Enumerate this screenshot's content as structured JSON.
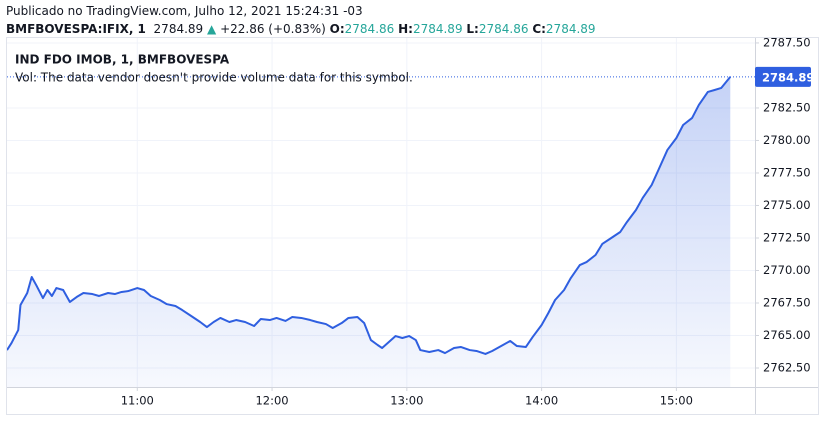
{
  "header": {
    "published": "Publicado no TradingView.com, Julho 12, 2021 15:24:31 -03",
    "symbol": "BMFBOVESPA:IFIX, 1",
    "last": "2784.89",
    "arrow": "▲",
    "change": "+22.86 (+0.83%)",
    "ohlc": [
      {
        "label": "O:",
        "value": "2784.86"
      },
      {
        "label": "H:",
        "value": "2784.89"
      },
      {
        "label": "L:",
        "value": "2784.86"
      },
      {
        "label": "C:",
        "value": "2784.89"
      }
    ]
  },
  "chart_data": {
    "type": "area",
    "title": "IND FDO IMOB, 1, BMFBOVESPA",
    "subtitle": "Vol: The data vendor doesn't provide volume data for this symbol.",
    "x": [
      "10:02",
      "10:04",
      "10:07",
      "10:08",
      "10:11",
      "10:13",
      "10:15",
      "10:18",
      "10:20",
      "10:22",
      "10:24",
      "10:27",
      "10:30",
      "10:33",
      "10:36",
      "10:40",
      "10:43",
      "10:47",
      "10:50",
      "10:53",
      "10:56",
      "11:00",
      "11:03",
      "11:06",
      "11:10",
      "11:13",
      "11:17",
      "11:20",
      "11:24",
      "11:28",
      "11:31",
      "11:34",
      "11:37",
      "11:41",
      "11:44",
      "11:48",
      "11:52",
      "11:55",
      "11:59",
      "12:02",
      "12:06",
      "12:09",
      "12:13",
      "12:17",
      "12:20",
      "12:24",
      "12:27",
      "12:31",
      "12:34",
      "12:38",
      "12:41",
      "12:44",
      "12:47",
      "12:49",
      "12:52",
      "12:55",
      "12:58",
      "13:01",
      "13:04",
      "13:06",
      "13:10",
      "13:14",
      "13:17",
      "13:21",
      "13:24",
      "13:28",
      "13:31",
      "13:35",
      "13:38",
      "13:42",
      "13:46",
      "13:49",
      "13:53",
      "13:56",
      "14:00",
      "14:03",
      "14:06",
      "14:10",
      "14:13",
      "14:17",
      "14:20",
      "14:24",
      "14:27",
      "14:31",
      "14:35",
      "14:38",
      "14:42",
      "14:45",
      "14:49",
      "14:52",
      "14:56",
      "15:00",
      "15:03",
      "15:07",
      "15:10",
      "15:14",
      "15:17",
      "15:20",
      "15:24"
    ],
    "series": [
      {
        "color": "#2f5fe0",
        "values": [
          2763.88,
          2764.42,
          2765.42,
          2767.35,
          2768.27,
          2769.5,
          2768.88,
          2767.88,
          2768.5,
          2768.04,
          2768.65,
          2768.5,
          2767.58,
          2767.96,
          2768.27,
          2768.19,
          2768.04,
          2768.27,
          2768.19,
          2768.35,
          2768.42,
          2768.65,
          2768.5,
          2768.04,
          2767.73,
          2767.42,
          2767.27,
          2766.96,
          2766.5,
          2766.04,
          2765.65,
          2766.04,
          2766.35,
          2766.04,
          2766.19,
          2766.04,
          2765.73,
          2766.27,
          2766.19,
          2766.35,
          2766.12,
          2766.42,
          2766.35,
          2766.19,
          2766.04,
          2765.88,
          2765.58,
          2765.96,
          2766.35,
          2766.42,
          2765.96,
          2764.65,
          2764.27,
          2764.04,
          2764.5,
          2764.96,
          2764.81,
          2764.96,
          2764.65,
          2763.88,
          2763.73,
          2763.88,
          2763.65,
          2764.04,
          2764.12,
          2763.88,
          2763.81,
          2763.58,
          2763.81,
          2764.19,
          2764.58,
          2764.19,
          2764.12,
          2764.88,
          2765.81,
          2766.73,
          2767.73,
          2768.5,
          2769.42,
          2770.42,
          2770.65,
          2771.19,
          2772.04,
          2772.5,
          2772.96,
          2773.73,
          2774.65,
          2775.58,
          2776.58,
          2777.73,
          2779.27,
          2780.19,
          2781.19,
          2781.73,
          2782.73,
          2783.73,
          2783.88,
          2784.04,
          2784.89
        ]
      }
    ],
    "xlim": [
      "10:02",
      "15:35"
    ],
    "xticks": [
      "11:00",
      "12:00",
      "13:00",
      "14:00",
      "15:00"
    ],
    "ylim": [
      2761.04,
      2787.88
    ],
    "yticks": [
      {
        "value": 2762.5,
        "label": "2762.50"
      },
      {
        "value": 2765,
        "label": "2765.00"
      },
      {
        "value": 2767.5,
        "label": "2767.50"
      },
      {
        "value": 2770,
        "label": "2770.00"
      },
      {
        "value": 2772.5,
        "label": "2772.50"
      },
      {
        "value": 2775,
        "label": "2775.00"
      },
      {
        "value": 2777.5,
        "label": "2777.50"
      },
      {
        "value": 2780,
        "label": "2780.00"
      },
      {
        "value": 2782.5,
        "label": "2782.50"
      },
      {
        "value": 2787.5,
        "label": "2787.50"
      }
    ],
    "grid": true
  }
}
